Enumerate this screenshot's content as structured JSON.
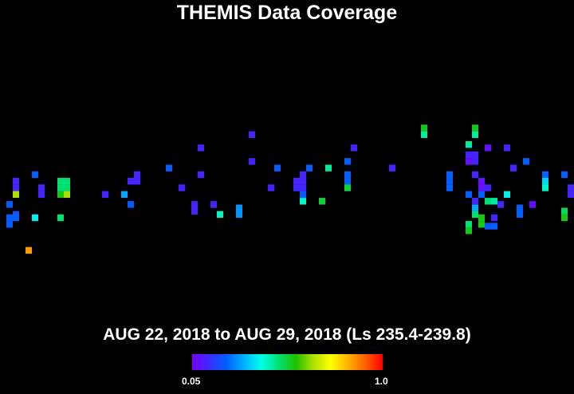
{
  "chart_data": {
    "type": "heatmap",
    "title": "THEMIS Data Coverage",
    "subtitle": "AUG 22, 2018 to AUG 29, 2018 (Ls 235.4-239.8)",
    "colorbar": {
      "min_label": "0.05",
      "max_label": "1.0",
      "min": 0.05,
      "max": 1.0,
      "colors": [
        "#7a00ff",
        "#3a2cff",
        "#0060ff",
        "#00b0ff",
        "#00ffe8",
        "#00e070",
        "#20c000",
        "#b0e000",
        "#ffff00",
        "#ffb000",
        "#ff6000",
        "#ff0000"
      ]
    },
    "grid": {
      "x_min": -180,
      "x_max": 180,
      "cell_lon": 4,
      "y_min": -90,
      "y_max": 90,
      "cell_lat": 3.64,
      "axes_shown": false
    },
    "cells": [
      {
        "lon": -170,
        "lat": 8.6,
        "value": 0.12
      },
      {
        "lon": -170,
        "lat": 5.0,
        "value": 0.12
      },
      {
        "lon": -170,
        "lat": 1.4,
        "value": 0.65
      },
      {
        "lon": -174,
        "lat": -4.1,
        "value": 0.22
      },
      {
        "lon": -170,
        "lat": -9.5,
        "value": 0.2
      },
      {
        "lon": -174,
        "lat": -11.3,
        "value": 0.22
      },
      {
        "lon": -174,
        "lat": -14.9,
        "value": 0.22
      },
      {
        "lon": -170,
        "lat": -11.3,
        "value": 0.22
      },
      {
        "lon": -158,
        "lat": 12.2,
        "value": 0.22
      },
      {
        "lon": -154,
        "lat": 5.0,
        "value": 0.12
      },
      {
        "lon": -154,
        "lat": 1.4,
        "value": 0.12
      },
      {
        "lon": -158,
        "lat": -11.3,
        "value": 0.38
      },
      {
        "lon": -142,
        "lat": 8.6,
        "value": 0.48
      },
      {
        "lon": -138,
        "lat": 8.6,
        "value": 0.48
      },
      {
        "lon": -142,
        "lat": 5.0,
        "value": 0.48
      },
      {
        "lon": -138,
        "lat": 5.0,
        "value": 0.48
      },
      {
        "lon": -142,
        "lat": 1.4,
        "value": 0.55
      },
      {
        "lon": -138,
        "lat": 1.4,
        "value": 0.65
      },
      {
        "lon": -142,
        "lat": -11.3,
        "value": 0.48
      },
      {
        "lon": -114,
        "lat": 1.4,
        "value": 0.12
      },
      {
        "lon": -102,
        "lat": 1.4,
        "value": 0.3
      },
      {
        "lon": -98,
        "lat": 8.6,
        "value": 0.12
      },
      {
        "lon": -94,
        "lat": 8.6,
        "value": 0.12
      },
      {
        "lon": -94,
        "lat": 12.2,
        "value": 0.12
      },
      {
        "lon": -98,
        "lat": -4.1,
        "value": 0.22
      },
      {
        "lon": -74,
        "lat": 15.8,
        "value": 0.22
      },
      {
        "lon": -66,
        "lat": 5.0,
        "value": 0.12
      },
      {
        "lon": -54,
        "lat": 26.8,
        "value": 0.12
      },
      {
        "lon": -54,
        "lat": 12.2,
        "value": 0.12
      },
      {
        "lon": -58,
        "lat": -4.1,
        "value": 0.12
      },
      {
        "lon": -58,
        "lat": -7.7,
        "value": 0.12
      },
      {
        "lon": -46,
        "lat": -4.1,
        "value": 0.12
      },
      {
        "lon": -42,
        "lat": -9.5,
        "value": 0.42
      },
      {
        "lon": -30,
        "lat": -6.0,
        "value": 0.28
      },
      {
        "lon": -30,
        "lat": -9.5,
        "value": 0.28
      },
      {
        "lon": -10,
        "lat": 5.0,
        "value": 0.12
      },
      {
        "lon": -22,
        "lat": 34.0,
        "value": 0.12
      },
      {
        "lon": -22,
        "lat": 19.4,
        "value": 0.12
      },
      {
        "lon": -6,
        "lat": 15.8,
        "value": 0.22
      },
      {
        "lon": 6,
        "lat": 8.6,
        "value": 0.12
      },
      {
        "lon": 10,
        "lat": 5.0,
        "value": 0.12
      },
      {
        "lon": 6,
        "lat": 5.0,
        "value": 0.12
      },
      {
        "lon": 10,
        "lat": 12.2,
        "value": 0.12
      },
      {
        "lon": 10,
        "lat": 8.6,
        "value": 0.12
      },
      {
        "lon": 10,
        "lat": 1.4,
        "value": 0.22
      },
      {
        "lon": 10,
        "lat": -2.3,
        "value": 0.42
      },
      {
        "lon": 14,
        "lat": 15.8,
        "value": 0.22
      },
      {
        "lon": 26,
        "lat": 15.8,
        "value": 0.45
      },
      {
        "lon": 22,
        "lat": -2.3,
        "value": 0.52
      },
      {
        "lon": 38,
        "lat": 19.4,
        "value": 0.22
      },
      {
        "lon": 38,
        "lat": 12.2,
        "value": 0.22
      },
      {
        "lon": 38,
        "lat": 8.6,
        "value": 0.22
      },
      {
        "lon": 38,
        "lat": 5.0,
        "value": 0.52
      },
      {
        "lon": 42,
        "lat": 26.8,
        "value": 0.12
      },
      {
        "lon": 66,
        "lat": 15.8,
        "value": 0.12
      },
      {
        "lon": 86,
        "lat": 37.6,
        "value": 0.55
      },
      {
        "lon": 86,
        "lat": 34.0,
        "value": 0.45
      },
      {
        "lon": 102,
        "lat": 12.2,
        "value": 0.22
      },
      {
        "lon": 102,
        "lat": 8.6,
        "value": 0.22
      },
      {
        "lon": 102,
        "lat": 5.0,
        "value": 0.22
      },
      {
        "lon": 118,
        "lat": 37.6,
        "value": 0.55
      },
      {
        "lon": 118,
        "lat": 34.0,
        "value": 0.45
      },
      {
        "lon": 114,
        "lat": 28.6,
        "value": 0.45
      },
      {
        "lon": 114,
        "lat": 23.0,
        "value": 0.12
      },
      {
        "lon": 118,
        "lat": 23.0,
        "value": 0.12
      },
      {
        "lon": 114,
        "lat": 19.4,
        "value": 0.08
      },
      {
        "lon": 118,
        "lat": 19.4,
        "value": 0.12
      },
      {
        "lon": 122,
        "lat": 8.6,
        "value": 0.08
      },
      {
        "lon": 122,
        "lat": 5.0,
        "value": 0.08
      },
      {
        "lon": 126,
        "lat": 5.0,
        "value": 0.12
      },
      {
        "lon": 118,
        "lat": 12.2,
        "value": 0.12
      },
      {
        "lon": 126,
        "lat": 26.8,
        "value": 0.08
      },
      {
        "lon": 114,
        "lat": 1.4,
        "value": 0.22
      },
      {
        "lon": 122,
        "lat": 1.4,
        "value": 0.22
      },
      {
        "lon": 118,
        "lat": -9.5,
        "value": 0.48
      },
      {
        "lon": 122,
        "lat": -11.3,
        "value": 0.55
      },
      {
        "lon": 122,
        "lat": -14.9,
        "value": 0.55
      },
      {
        "lon": 114,
        "lat": -14.9,
        "value": 0.48
      },
      {
        "lon": 114,
        "lat": -18.4,
        "value": 0.55
      },
      {
        "lon": 118,
        "lat": -2.3,
        "value": 0.12
      },
      {
        "lon": 118,
        "lat": -6.0,
        "value": 0.3
      },
      {
        "lon": 118,
        "lat": -2.3,
        "value": 0.12
      },
      {
        "lon": 138,
        "lat": 26.8,
        "value": 0.12
      },
      {
        "lon": 142,
        "lat": 15.8,
        "value": 0.12
      },
      {
        "lon": 134,
        "lat": -4.1,
        "value": 0.12
      },
      {
        "lon": 130,
        "lat": -11.3,
        "value": 0.12
      },
      {
        "lon": 130,
        "lat": -2.3,
        "value": 0.45
      },
      {
        "lon": 150,
        "lat": 19.4,
        "value": 0.22
      },
      {
        "lon": 126,
        "lat": -2.3,
        "value": 0.48
      },
      {
        "lon": 130,
        "lat": -15.9,
        "value": 0.22
      },
      {
        "lon": 126,
        "lat": -15.9,
        "value": 0.2
      },
      {
        "lon": 154,
        "lat": -4.1,
        "value": 0.08
      },
      {
        "lon": 146,
        "lat": -6.0,
        "value": 0.22
      },
      {
        "lon": 146,
        "lat": -9.5,
        "value": 0.22
      },
      {
        "lon": 138,
        "lat": 1.4,
        "value": 0.38
      },
      {
        "lon": 162,
        "lat": 12.2,
        "value": 0.22
      },
      {
        "lon": 162,
        "lat": 8.6,
        "value": 0.35
      },
      {
        "lon": 162,
        "lat": 5.0,
        "value": 0.42
      },
      {
        "lon": 174,
        "lat": 12.2,
        "value": 0.22
      },
      {
        "lon": 178,
        "lat": 5.0,
        "value": 0.12
      },
      {
        "lon": 178,
        "lat": 1.4,
        "value": 0.12
      },
      {
        "lon": 174,
        "lat": -7.7,
        "value": 0.5
      },
      {
        "lon": 174,
        "lat": -11.3,
        "value": 0.55
      },
      {
        "lon": -162,
        "lat": -29.1,
        "value": 0.85
      }
    ]
  }
}
